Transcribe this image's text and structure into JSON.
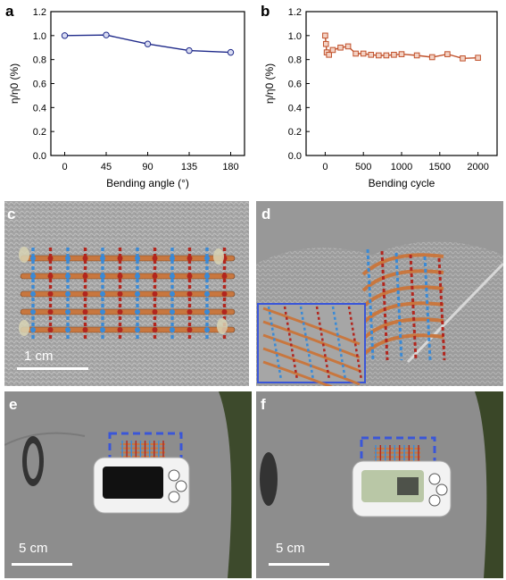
{
  "colors": {
    "series_a": "#1f2a8a",
    "series_b": "#c0502a",
    "knit": "#a8a8a8",
    "copper": "#c8773f",
    "red_fiber": "#b2261e",
    "blue_fiber": "#3a8ad6",
    "dashed_box": "#3a56d8",
    "shirt": "#8e8e8e",
    "pedometer": "#f2f2f2"
  },
  "panels": {
    "a": {
      "letter": "a"
    },
    "b": {
      "letter": "b"
    },
    "c": {
      "letter": "c",
      "scale_label": "1 cm"
    },
    "d": {
      "letter": "d"
    },
    "e": {
      "letter": "e",
      "scale_label": "5 cm"
    },
    "f": {
      "letter": "f",
      "scale_label": "5 cm"
    }
  },
  "chart_data": [
    {
      "panel": "a",
      "type": "line",
      "xlabel": "Bending angle (°)",
      "ylabel": "η/η0 (%)",
      "xlim": [
        -15,
        195
      ],
      "ylim": [
        0.0,
        1.2
      ],
      "xticks": [
        0,
        45,
        90,
        135,
        180
      ],
      "yticks": [
        0.0,
        0.2,
        0.4,
        0.6,
        0.8,
        1.0,
        1.2
      ],
      "grid": false,
      "marker": "circle",
      "x": [
        0,
        45,
        90,
        135,
        180
      ],
      "y": [
        1.0,
        1.005,
        0.93,
        0.875,
        0.86
      ]
    },
    {
      "panel": "b",
      "type": "line",
      "xlabel": "Bending cycle",
      "ylabel": "η/η0 (%)",
      "xlim": [
        -250,
        2250
      ],
      "ylim": [
        0.0,
        1.2
      ],
      "xticks": [
        0,
        500,
        1000,
        1500,
        2000
      ],
      "yticks": [
        0.0,
        0.2,
        0.4,
        0.6,
        0.8,
        1.0,
        1.2
      ],
      "grid": false,
      "marker": "square",
      "x": [
        0,
        10,
        20,
        50,
        100,
        200,
        300,
        400,
        500,
        600,
        700,
        800,
        900,
        1000,
        1200,
        1400,
        1600,
        1800,
        2000
      ],
      "y": [
        1.0,
        0.93,
        0.86,
        0.84,
        0.88,
        0.9,
        0.91,
        0.85,
        0.85,
        0.84,
        0.835,
        0.835,
        0.84,
        0.845,
        0.835,
        0.82,
        0.845,
        0.81,
        0.815
      ]
    }
  ]
}
